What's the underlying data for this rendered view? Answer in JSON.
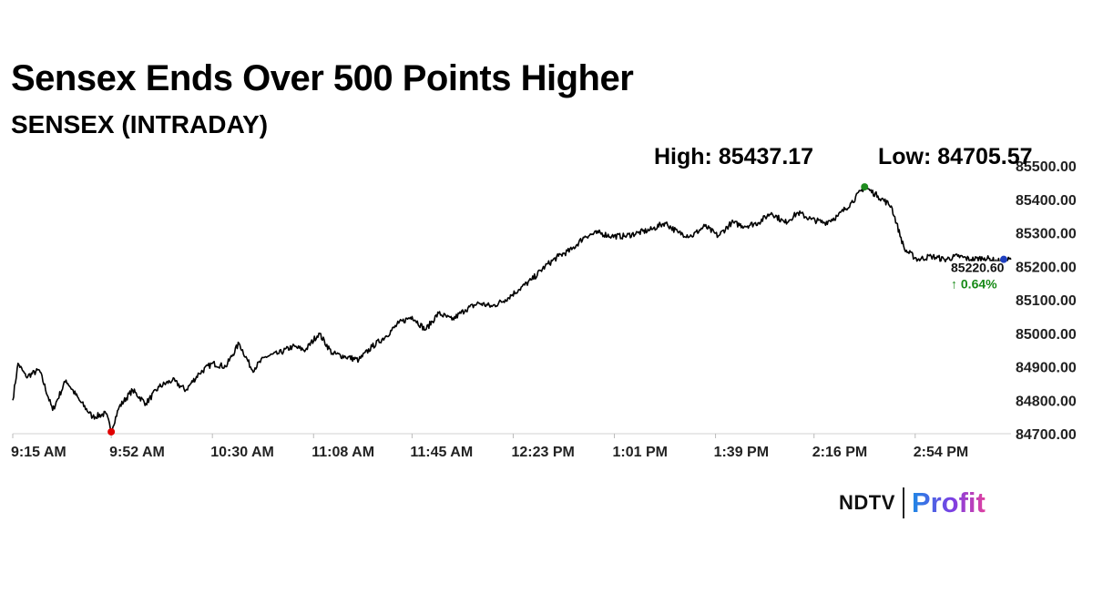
{
  "headline": "Sensex Ends Over 500 Points Higher",
  "subheadline": "SENSEX (INTRADAY)",
  "stats": {
    "high_label": "High: 85437.17",
    "low_label": "Low: 84705.57"
  },
  "brand": {
    "left": "NDTV",
    "right": "Profit"
  },
  "colors": {
    "line": "#000000",
    "high_marker": "#1e8c1e",
    "low_marker": "#e00000",
    "last_marker": "#1f3fbf",
    "change_up": "#178a17"
  },
  "chart_data": {
    "type": "line",
    "title": "SENSEX (INTRADAY)",
    "xlabel": "",
    "ylabel": "",
    "x_ticks": [
      "9:15 AM",
      "9:52 AM",
      "10:30 AM",
      "11:08 AM",
      "11:45 AM",
      "12:23 PM",
      "1:01 PM",
      "1:39 PM",
      "2:16 PM",
      "2:54 PM"
    ],
    "y_ticks": [
      "84700.00",
      "84800.00",
      "84900.00",
      "85000.00",
      "85100.00",
      "85200.00",
      "85300.00",
      "85400.00",
      "85500.00"
    ],
    "ylim": [
      84700,
      85500
    ],
    "x_domain": [
      "9:15 AM",
      "3:30 PM"
    ],
    "grid": false,
    "series": [
      {
        "x": [
          "9:15 AM",
          "9:17 AM",
          "9:20 AM",
          "9:25 AM",
          "9:30 AM",
          "9:35 AM",
          "9:40 AM",
          "9:45 AM",
          "9:50 AM",
          "9:52 AM",
          "9:55 AM",
          "10:00 AM",
          "10:05 AM",
          "10:10 AM",
          "10:15 AM",
          "10:20 AM",
          "10:25 AM",
          "10:30 AM",
          "10:35 AM",
          "10:40 AM",
          "10:45 AM",
          "10:50 AM",
          "10:55 AM",
          "11:00 AM",
          "11:05 AM",
          "11:10 AM",
          "11:15 AM",
          "11:20 AM",
          "11:25 AM",
          "11:30 AM",
          "11:35 AM",
          "11:40 AM",
          "11:45 AM",
          "11:50 AM",
          "11:55 AM",
          "12:00 PM",
          "12:05 PM",
          "12:10 PM",
          "12:15 PM",
          "12:20 PM",
          "12:25 PM",
          "12:30 PM",
          "12:35 PM",
          "12:40 PM",
          "12:45 PM",
          "12:50 PM",
          "12:55 PM",
          "1:00 PM",
          "1:05 PM",
          "1:10 PM",
          "1:15 PM",
          "1:20 PM",
          "1:25 PM",
          "1:30 PM",
          "1:35 PM",
          "1:40 PM",
          "1:45 PM",
          "1:50 PM",
          "1:55 PM",
          "2:00 PM",
          "2:05 PM",
          "2:10 PM",
          "2:15 PM",
          "2:20 PM",
          "2:25 PM",
          "2:30 PM",
          "2:35 PM",
          "2:40 PM",
          "2:45 PM",
          "2:50 PM",
          "2:55 PM",
          "3:00 PM",
          "3:05 PM",
          "3:10 PM",
          "3:15 PM",
          "3:20 PM",
          "3:25 PM",
          "3:30 PM"
        ],
        "values": [
          84800,
          84910,
          84870,
          84890,
          84770,
          84860,
          84800,
          84750,
          84760,
          84710,
          84780,
          84830,
          84790,
          84840,
          84860,
          84830,
          84880,
          84910,
          84900,
          84970,
          84890,
          84930,
          84940,
          84960,
          84950,
          85000,
          84940,
          84930,
          84920,
          84960,
          84990,
          85030,
          85050,
          85010,
          85060,
          85040,
          85070,
          85090,
          85080,
          85100,
          85130,
          85160,
          85200,
          85230,
          85250,
          85290,
          85300,
          85290,
          85290,
          85300,
          85310,
          85330,
          85300,
          85290,
          85320,
          85290,
          85330,
          85320,
          85330,
          85360,
          85330,
          85360,
          85340,
          85330,
          85350,
          85390,
          85437,
          85410,
          85380,
          85250,
          85220,
          85230,
          85220,
          85230,
          85220,
          85225,
          85215,
          85220.6
        ]
      }
    ],
    "high_value": 85437.17,
    "low_value": 84705.57,
    "last_value_label": "85220.60",
    "change_label": "↑ 0.64%"
  }
}
